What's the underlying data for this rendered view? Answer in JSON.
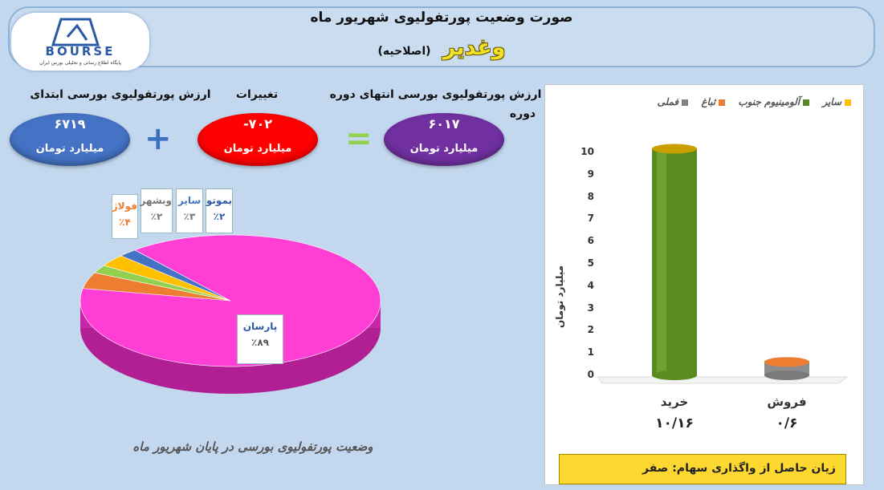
{
  "header": {
    "title": "صورت وضعیت پورتفولیوی شهریور ماه",
    "company": "وغدیر",
    "subtitle": "(اصلاحیه)",
    "logo_text": "BOURSE",
    "logo_tagline": "پایگاه اطلاع رسانی و تحلیلی بورس ایران"
  },
  "summary": {
    "initial_label": "ارزش پورتفولیوی بورسی ابتدای",
    "initial_value": "۶۷۱۹",
    "change_label": "تغییرات",
    "change_value": "-۷۰۲",
    "final_label": "ارزش پورتفولیوی بورسی انتهای دوره",
    "final_label_extra": "دوره",
    "final_value": "۶۰۱۷",
    "unit": "میلیارد تومان",
    "plus_symbol": "+",
    "equals_symbol": "="
  },
  "colors": {
    "initial_oval": "#4472c4",
    "change_oval": "#ff0000",
    "final_oval": "#7030a0",
    "pie_parsan": "#ff3ed6",
    "pie_foolad": "#ed7d31",
    "pie_vbshahr": "#92d050",
    "pie_sayer": "#ffc000",
    "pie_bemoto": "#4472c4",
    "bar_kharid": "#5a8a22",
    "bar_foroosh": "#ed7d31"
  },
  "pie_caption": "وضعیت پورتفولیوی بورسی در پایان شهریور ماه",
  "chart_data": [
    {
      "type": "pie",
      "slices": [
        {
          "name": "پارسان",
          "value": 89,
          "label": "٪۸۹"
        },
        {
          "name": "فولاژ",
          "value": 4,
          "label": "٪۴"
        },
        {
          "name": "وبشهر",
          "value": 2,
          "label": "٪۲"
        },
        {
          "name": "سایر",
          "value": 3,
          "label": "٪۳"
        },
        {
          "name": "بموتو",
          "value": 2,
          "label": "٪۲"
        }
      ]
    },
    {
      "type": "bar",
      "categories": [
        "خرید",
        "فروش"
      ],
      "values": [
        10.16,
        0.6
      ],
      "data_labels": [
        "۱۰/۱۶",
        "۰/۶"
      ],
      "ylabel": "میلیارد تومان",
      "ylim": [
        0,
        10
      ],
      "yticks": [
        "0",
        "1",
        "2",
        "3",
        "4",
        "5",
        "6",
        "7",
        "8",
        "9",
        "10"
      ],
      "legend": [
        "سایر",
        "آلومینیوم جنوب",
        "ثباغ",
        "فملی"
      ],
      "legend_colors": [
        "#ffc000",
        "#5a8a22",
        "#ed7d31",
        "#808080"
      ],
      "legend_position": "top"
    }
  ],
  "footer_note": "زیان حاصل از واگذاری سهام: صفر"
}
